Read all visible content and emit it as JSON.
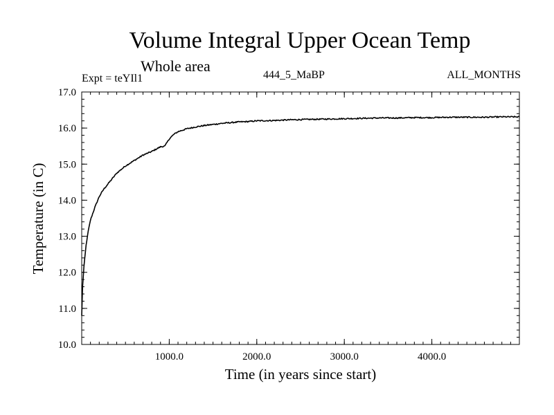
{
  "chart_data": {
    "type": "line",
    "title": "Volume Integral Upper Ocean Temp",
    "subtitle": "Whole area",
    "expt_label": "Expt = teYIl1",
    "run_label": "444_5_MaBP",
    "months_label": "ALL_MONTHS",
    "xlabel": "Time (in years since start)",
    "ylabel": "Temperature (in C)",
    "xlim": [
      0,
      5000
    ],
    "ylim": [
      10.0,
      17.0
    ],
    "x_tick_labels": [
      {
        "value": 1000,
        "label": "1000.0"
      },
      {
        "value": 2000,
        "label": "2000.0"
      },
      {
        "value": 3000,
        "label": "3000.0"
      },
      {
        "value": 4000,
        "label": "4000.0"
      }
    ],
    "y_tick_labels": [
      {
        "value": 10.0,
        "label": "10.0"
      },
      {
        "value": 11.0,
        "label": "11.0"
      },
      {
        "value": 12.0,
        "label": "12.0"
      },
      {
        "value": 13.0,
        "label": "13.0"
      },
      {
        "value": 14.0,
        "label": "14.0"
      },
      {
        "value": 15.0,
        "label": "15.0"
      },
      {
        "value": 16.0,
        "label": "16.0"
      },
      {
        "value": 17.0,
        "label": "17.0"
      }
    ],
    "x_minor_step": 100,
    "y_minor_step": 0.2,
    "series": [
      {
        "name": "Volume Integral Upper Ocean Temp",
        "color": "#000000",
        "x": [
          0,
          10,
          25,
          50,
          75,
          100,
          150,
          200,
          250,
          300,
          350,
          400,
          450,
          500,
          600,
          700,
          800,
          900,
          950,
          1000,
          1050,
          1100,
          1200,
          1300,
          1400,
          1500,
          1600,
          1700,
          1800,
          1900,
          2000,
          2200,
          2400,
          2600,
          2800,
          3000,
          3200,
          3400,
          3600,
          3800,
          4000,
          4200,
          4400,
          4600,
          4800,
          5000
        ],
        "y": [
          10.8,
          11.6,
          12.15,
          12.75,
          13.15,
          13.45,
          13.8,
          14.1,
          14.3,
          14.45,
          14.6,
          14.75,
          14.85,
          14.95,
          15.1,
          15.25,
          15.35,
          15.48,
          15.5,
          15.7,
          15.82,
          15.9,
          15.98,
          16.03,
          16.07,
          16.1,
          16.13,
          16.15,
          16.17,
          16.18,
          16.2,
          16.21,
          16.23,
          16.24,
          16.25,
          16.26,
          16.27,
          16.28,
          16.28,
          16.29,
          16.29,
          16.3,
          16.3,
          16.3,
          16.31,
          16.31
        ]
      }
    ]
  }
}
